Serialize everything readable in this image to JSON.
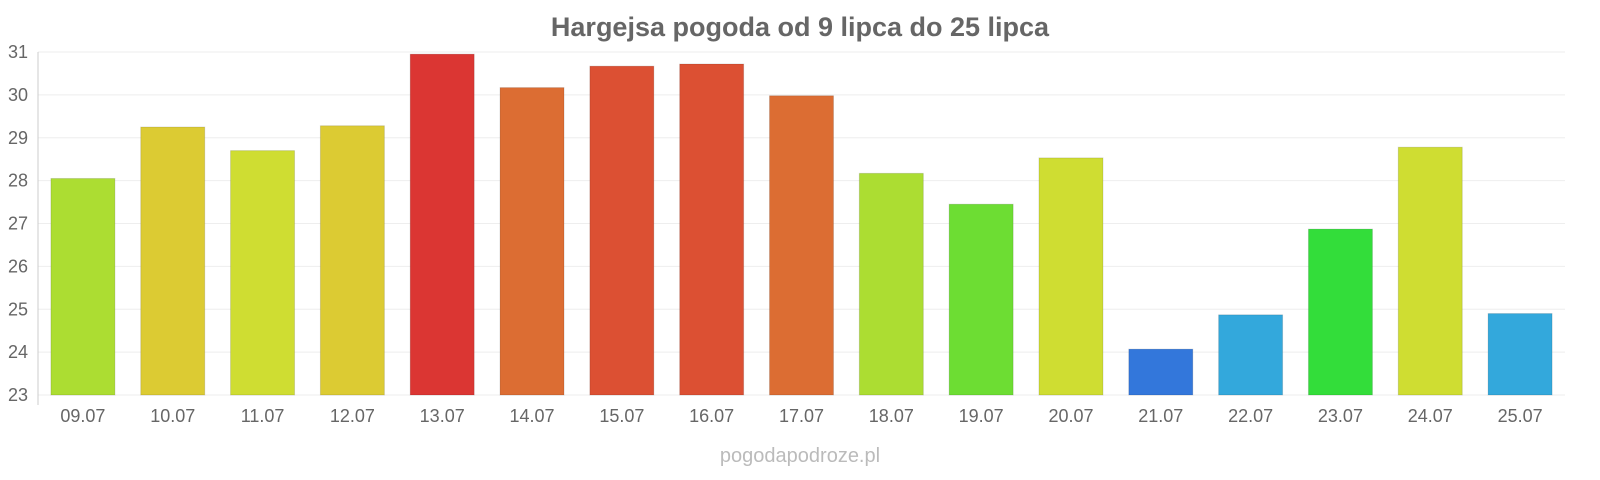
{
  "chart_data": {
    "type": "bar",
    "title": "Hargejsa pogoda od 9 lipca do 25 lipca",
    "xlabel": "",
    "ylabel": "",
    "ylim": [
      23,
      31
    ],
    "yticks": [
      "23",
      "24",
      "25",
      "26",
      "27",
      "28",
      "29",
      "30",
      "31"
    ],
    "categories": [
      "09.07",
      "10.07",
      "11.07",
      "12.07",
      "13.07",
      "14.07",
      "15.07",
      "16.07",
      "17.07",
      "18.07",
      "19.07",
      "20.07",
      "21.07",
      "22.07",
      "23.07",
      "24.07",
      "25.07"
    ],
    "values": [
      28.05,
      29.25,
      28.7,
      29.28,
      30.95,
      30.17,
      30.67,
      30.72,
      29.98,
      28.17,
      27.45,
      28.53,
      24.07,
      24.87,
      26.87,
      28.78,
      24.9
    ],
    "colors": [
      "#acdd32",
      "#dccb33",
      "#cfdd32",
      "#dccb33",
      "#db3633",
      "#dc6d33",
      "#dc5033",
      "#dc5033",
      "#dc6d33",
      "#acdd32",
      "#6ddd33",
      "#cfdd32",
      "#3377db",
      "#33a8dc",
      "#33dd3a",
      "#cfdd32",
      "#33a8dc"
    ],
    "grid": true,
    "legend": "none"
  },
  "watermark": "pogodapodroze.pl"
}
